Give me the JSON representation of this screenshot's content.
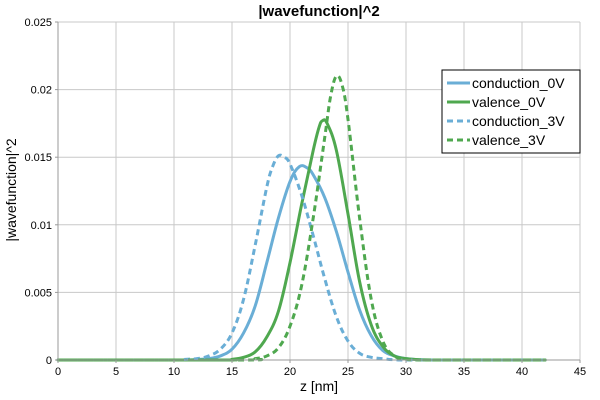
{
  "chart_data": {
    "type": "line",
    "title": "|wavefunction|^2",
    "xlabel": "z [nm]",
    "ylabel": "|wavefunction|^2",
    "xlim": [
      0,
      45
    ],
    "ylim": [
      0,
      0.025
    ],
    "x_ticks": [
      0,
      5,
      10,
      15,
      20,
      25,
      30,
      35,
      40,
      45
    ],
    "y_ticks": [
      0,
      0.005,
      0.01,
      0.015,
      0.02,
      0.025
    ],
    "x_tick_labels": [
      "0",
      "5",
      "10",
      "15",
      "20",
      "25",
      "30",
      "35",
      "40",
      "45"
    ],
    "y_tick_labels": [
      "0",
      "0.005",
      "0.01",
      "0.015",
      "0.02",
      "0.025"
    ],
    "grid": true,
    "legend_position": "top-right",
    "series": [
      {
        "name": "conduction_0V",
        "color": "#6aaed6",
        "dash": "solid",
        "x": [
          0,
          10,
          12,
          13,
          14,
          15,
          16,
          17,
          18,
          19,
          20,
          20.8,
          21.5,
          22,
          23,
          24,
          25,
          26,
          27,
          28,
          29,
          30,
          31,
          33,
          42
        ],
        "y": [
          0,
          0,
          5e-05,
          0.0001,
          0.0003,
          0.0008,
          0.002,
          0.004,
          0.0072,
          0.0105,
          0.0132,
          0.0143,
          0.0142,
          0.0137,
          0.012,
          0.0095,
          0.0065,
          0.0037,
          0.0018,
          0.0007,
          0.0003,
          0.0001,
          3e-05,
          0,
          0
        ]
      },
      {
        "name": "valence_0V",
        "color": "#4fa84f",
        "dash": "solid",
        "x": [
          0,
          14,
          15,
          16,
          17,
          18,
          19,
          20,
          21,
          22,
          22.5,
          22.8,
          23.2,
          24,
          25,
          26,
          27,
          28,
          29,
          30,
          31,
          33,
          42
        ],
        "y": [
          0,
          0,
          5e-05,
          0.0002,
          0.0006,
          0.0017,
          0.0036,
          0.0072,
          0.0115,
          0.0155,
          0.0172,
          0.0177,
          0.0175,
          0.0155,
          0.0108,
          0.0058,
          0.0026,
          0.001,
          0.0003,
          0.0001,
          3e-05,
          0,
          0
        ]
      },
      {
        "name": "conduction_3V",
        "color": "#6aaed6",
        "dash": "dashed",
        "x": [
          0,
          10,
          11,
          12,
          13,
          14,
          15,
          16,
          17,
          18,
          18.5,
          19,
          19.5,
          20,
          21,
          22,
          23,
          24,
          25,
          26,
          27,
          28,
          29,
          31,
          42
        ],
        "y": [
          0,
          0,
          5e-05,
          0.0001,
          0.0003,
          0.0008,
          0.002,
          0.0045,
          0.0085,
          0.0128,
          0.0143,
          0.0151,
          0.015,
          0.0145,
          0.0122,
          0.0092,
          0.006,
          0.0032,
          0.0014,
          0.0005,
          0.0002,
          0.0001,
          2e-05,
          0,
          0
        ]
      },
      {
        "name": "valence_3V",
        "color": "#4fa84f",
        "dash": "dashed",
        "x": [
          0,
          16,
          17,
          18,
          19,
          20,
          21,
          22,
          23,
          23.5,
          24,
          24.5,
          25,
          26,
          27,
          28,
          29,
          30,
          32,
          42
        ],
        "y": [
          0,
          0,
          0.0001,
          0.0003,
          0.0009,
          0.0025,
          0.0055,
          0.0105,
          0.0165,
          0.0195,
          0.021,
          0.0203,
          0.0178,
          0.0105,
          0.0045,
          0.0014,
          0.0003,
          5e-05,
          0,
          0
        ]
      }
    ]
  }
}
